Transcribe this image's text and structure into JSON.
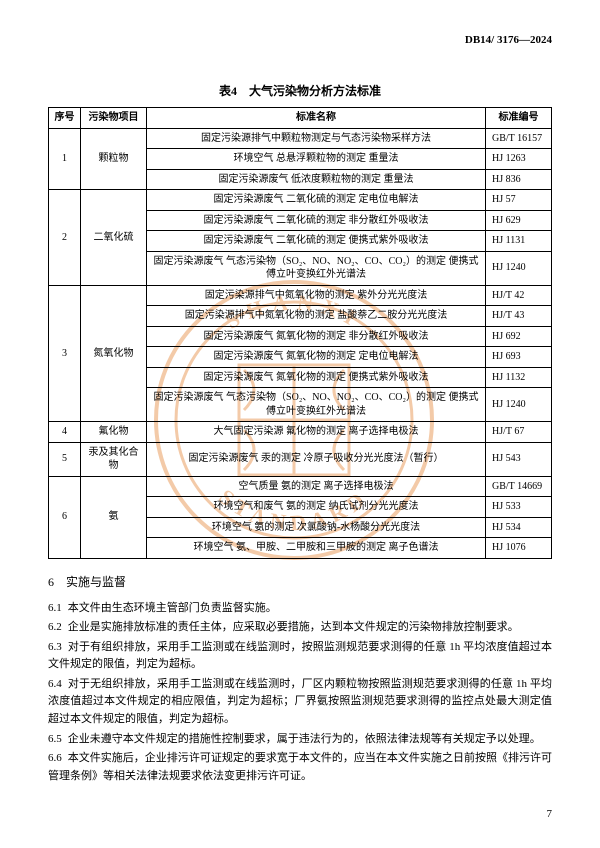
{
  "doc_code": "DB14/ 3176—2024",
  "table": {
    "caption": "表4　大气污染物分析方法标准",
    "headers": [
      "序号",
      "污染物项目",
      "标准名称",
      "标准编号"
    ],
    "groups": [
      {
        "seq": "1",
        "pollutant": "颗粒物",
        "rows": [
          {
            "std": "固定污染源排气中颗粒物测定与气态污染物采样方法",
            "code": "GB/T 16157"
          },
          {
            "std": "环境空气 总悬浮颗粒物的测定 重量法",
            "code": "HJ 1263"
          },
          {
            "std": "固定污染源废气 低浓度颗粒物的测定 重量法",
            "code": "HJ 836"
          }
        ]
      },
      {
        "seq": "2",
        "pollutant": "二氧化硫",
        "rows": [
          {
            "std": "固定污染源废气 二氧化硫的测定 定电位电解法",
            "code": "HJ 57"
          },
          {
            "std": "固定污染源废气 二氧化硫的测定 非分散红外吸收法",
            "code": "HJ 629"
          },
          {
            "std": "固定污染源废气 二氧化硫的测定 便携式紫外吸收法",
            "code": "HJ 1131"
          },
          {
            "std": "固定污染源废气 气态污染物（SO₂、NO、NO₂、CO、CO₂）的测定 便携式傅立叶变换红外光谱法",
            "code": "HJ 1240"
          }
        ]
      },
      {
        "seq": "3",
        "pollutant": "氮氧化物",
        "rows": [
          {
            "std": "固定污染源排气中氮氧化物的测定 紫外分光光度法",
            "code": "HJ/T 42"
          },
          {
            "std": "固定污染源排气中氮氧化物的测定 盐酸萘乙二胺分光光度法",
            "code": "HJ/T 43"
          },
          {
            "std": "固定污染源废气 氮氧化物的测定 非分散红外吸收法",
            "code": "HJ 692"
          },
          {
            "std": "固定污染源废气 氮氧化物的测定 定电位电解法",
            "code": "HJ 693"
          },
          {
            "std": "固定污染源废气 氮氧化物的测定 便携式紫外吸收法",
            "code": "HJ 1132"
          },
          {
            "std": "固定污染源废气 气态污染物（SO₂、NO、NO₂、CO、CO₂）的测定 便携式傅立叶变换红外光谱法",
            "code": "HJ 1240"
          }
        ]
      },
      {
        "seq": "4",
        "pollutant": "氟化物",
        "rows": [
          {
            "std": "大气固定污染源 氟化物的测定 离子选择电极法",
            "code": "HJ/T 67"
          }
        ]
      },
      {
        "seq": "5",
        "pollutant": "汞及其化合物",
        "rows": [
          {
            "std": "固定污染源废气 汞的测定 冷原子吸收分光光度法（暂行）",
            "code": "HJ 543"
          }
        ]
      },
      {
        "seq": "6",
        "pollutant": "氨",
        "rows": [
          {
            "std": "空气质量 氨的测定 离子选择电极法",
            "code": "GB/T 14669"
          },
          {
            "std": "环境空气和废气 氨的测定 纳氏试剂分光光度法",
            "code": "HJ 533"
          },
          {
            "std": "环境空气 氨的测定 次氯酸钠-水杨酸分光光度法",
            "code": "HJ 534"
          },
          {
            "std": "环境空气 氨、甲胺、二甲胺和三甲胺的测定 离子色谱法",
            "code": "HJ 1076"
          }
        ]
      }
    ]
  },
  "section": {
    "heading": "6　实施与监督",
    "paras": [
      {
        "num": "6.1",
        "text": "本文件由生态环境主管部门负责监督实施。"
      },
      {
        "num": "6.2",
        "text": "企业是实施排放标准的责任主体，应采取必要措施，达到本文件规定的污染物排放控制要求。"
      },
      {
        "num": "6.3",
        "text": "对于有组织排放，采用手工监测或在线监测时，按照监测规范要求测得的任意 1h 平均浓度值超过本文件规定的限值，判定为超标。"
      },
      {
        "num": "6.4",
        "text": "对于无组织排放，采用手工监测或在线监测时，厂区内颗粒物按照监测规范要求测得的任意 1h 平均浓度值超过本文件规定的相应限值，判定为超标；厂界氨按照监测规范要求测得的监控点处最大测定值超过本文件规定的限值，判定为超标。"
      },
      {
        "num": "6.5",
        "text": "企业未遵守本文件规定的措施性控制要求，属于违法行为的，依照法律法规等有关规定予以处理。"
      },
      {
        "num": "6.6",
        "text": "本文件实施后，企业排污许可证规定的要求宽于本文件的，应当在本文件实施之日前按照《排污许可管理条例》等相关法律法规要求依法变更排污许可证。"
      }
    ]
  },
  "page_number": "7",
  "watermark": {
    "color": "#e99a5a",
    "top_text": "SHANXI",
    "bottom_text": "STANDARD"
  }
}
